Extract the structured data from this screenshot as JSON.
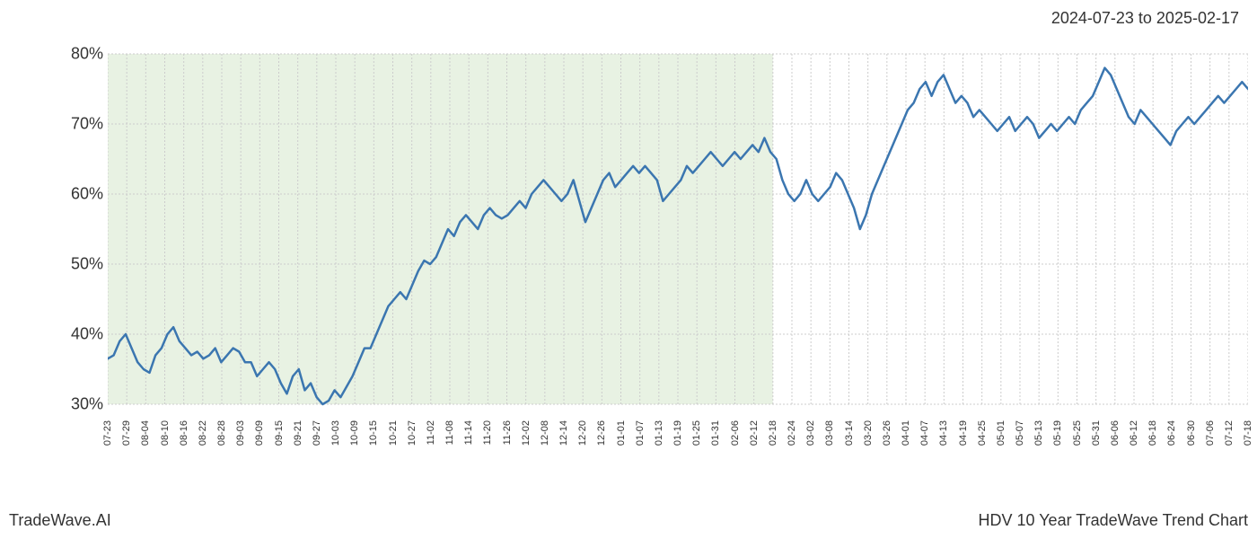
{
  "date_range": "2024-07-23 to 2025-02-17",
  "footer_left": "TradeWave.AI",
  "footer_right": "HDV 10 Year TradeWave Trend Chart",
  "chart": {
    "type": "line",
    "background_color": "#ffffff",
    "highlight_fill": "#d8e9d0",
    "highlight_opacity": 0.6,
    "line_color": "#3b76b0",
    "line_width": 2.5,
    "grid_color": "#cccccc",
    "grid_dash": "2,2",
    "text_color": "#333333",
    "y_axis": {
      "min": 30,
      "max": 80,
      "ticks": [
        30,
        40,
        50,
        60,
        70,
        80
      ],
      "tick_labels": [
        "30%",
        "40%",
        "50%",
        "60%",
        "70%",
        "80%"
      ],
      "label_fontsize": 18
    },
    "x_axis": {
      "labels": [
        "07-23",
        "07-29",
        "08-04",
        "08-10",
        "08-16",
        "08-22",
        "08-28",
        "09-03",
        "09-09",
        "09-15",
        "09-21",
        "09-27",
        "10-03",
        "10-09",
        "10-15",
        "10-21",
        "10-27",
        "11-02",
        "11-08",
        "11-14",
        "11-20",
        "11-26",
        "12-02",
        "12-08",
        "12-14",
        "12-20",
        "12-26",
        "01-01",
        "01-07",
        "01-13",
        "01-19",
        "01-25",
        "01-31",
        "02-06",
        "02-12",
        "02-18",
        "02-24",
        "03-02",
        "03-08",
        "03-14",
        "03-20",
        "03-26",
        "04-01",
        "04-07",
        "04-13",
        "04-19",
        "04-25",
        "05-01",
        "05-07",
        "05-13",
        "05-19",
        "05-25",
        "05-31",
        "06-06",
        "06-12",
        "06-18",
        "06-24",
        "06-30",
        "07-06",
        "07-12",
        "07-18"
      ],
      "label_fontsize": 11
    },
    "highlight_range": {
      "start_index": 0,
      "end_index": 35
    },
    "series": {
      "values": [
        36.5,
        37,
        39,
        40,
        38,
        36,
        35,
        34.5,
        37,
        38,
        40,
        41,
        39,
        38,
        37,
        37.5,
        36.5,
        37,
        38,
        36,
        37,
        38,
        37.5,
        36,
        36,
        34,
        35,
        36,
        35,
        33,
        31.5,
        34,
        35,
        32,
        33,
        31,
        30,
        30.5,
        32,
        31,
        32.5,
        34,
        36,
        38,
        38,
        40,
        42,
        44,
        45,
        46,
        45,
        47,
        49,
        50.5,
        50,
        51,
        53,
        55,
        54,
        56,
        57,
        56,
        55,
        57,
        58,
        57,
        56.5,
        57,
        58,
        59,
        58,
        60,
        61,
        62,
        61,
        60,
        59,
        60,
        62,
        59,
        56,
        58,
        60,
        62,
        63,
        61,
        62,
        63,
        64,
        63,
        64,
        63,
        62,
        59,
        60,
        61,
        62,
        64,
        63,
        64,
        65,
        66,
        65,
        64,
        65,
        66,
        65,
        66,
        67,
        66,
        68,
        66,
        65,
        62,
        60,
        59,
        60,
        62,
        60,
        59,
        60,
        61,
        63,
        62,
        60,
        58,
        55,
        57,
        60,
        62,
        64,
        66,
        68,
        70,
        72,
        73,
        75,
        76,
        74,
        76,
        77,
        75,
        73,
        74,
        73,
        71,
        72,
        71,
        70,
        69,
        70,
        71,
        69,
        70,
        71,
        70,
        68,
        69,
        70,
        69,
        70,
        71,
        70,
        72,
        73,
        74,
        76,
        78,
        77,
        75,
        73,
        71,
        70,
        72,
        71,
        70,
        69,
        68,
        67,
        69,
        70,
        71,
        70,
        71,
        72,
        73,
        74,
        73,
        74,
        75,
        76,
        75
      ]
    }
  }
}
